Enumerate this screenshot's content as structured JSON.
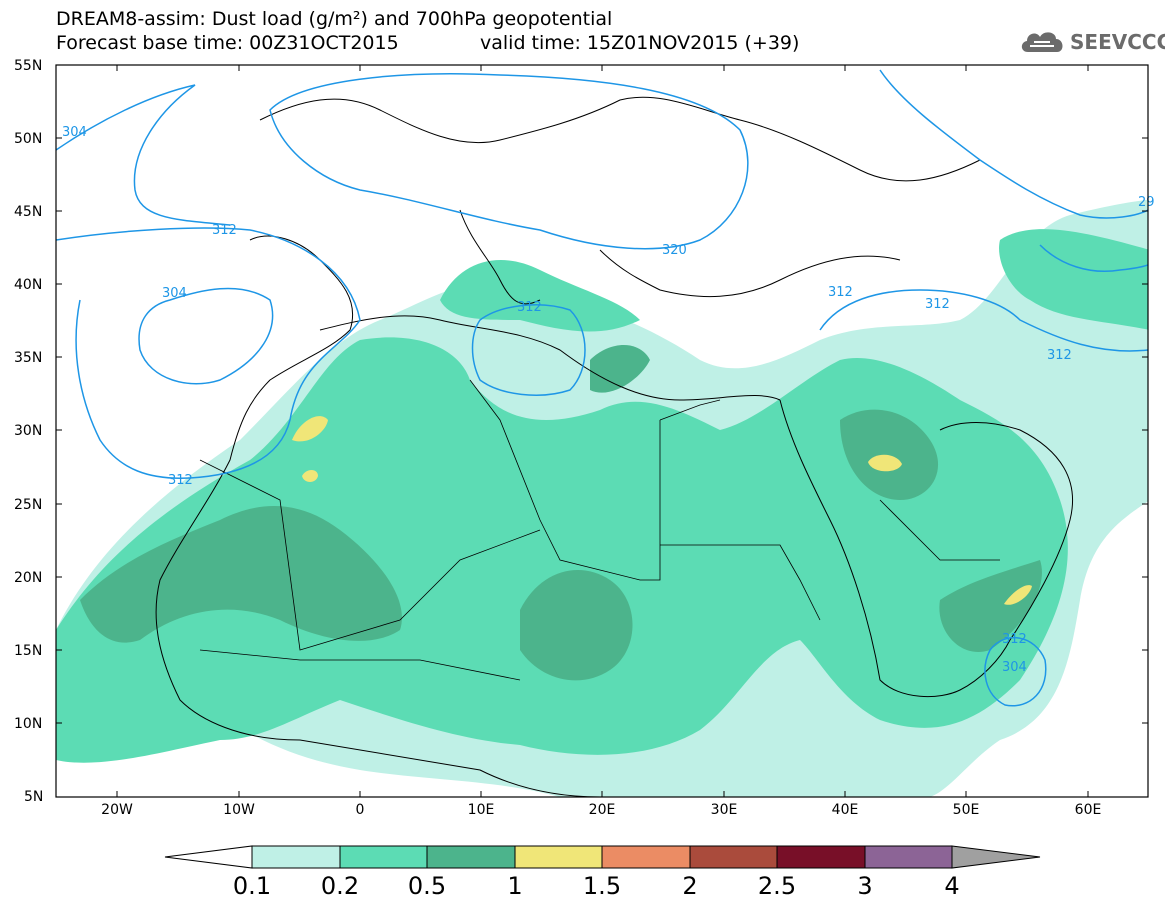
{
  "header": {
    "title_line1": "DREAM8-assim: Dust load (g/m²) and 700hPa geopotential",
    "title_line2": "Forecast base time: 00Z31OCT2015",
    "valid_time": "valid time: 15Z01NOV2015 (+39)",
    "logo_text": "SEEVCCC",
    "logo_icon": "cloud-icon"
  },
  "map": {
    "lat_labels": [
      "55N",
      "50N",
      "45N",
      "40N",
      "35N",
      "30N",
      "25N",
      "20N",
      "15N",
      "10N",
      "5N"
    ],
    "lon_labels": [
      "20W",
      "10W",
      "0",
      "10E",
      "20E",
      "30E",
      "40E",
      "50E",
      "60E"
    ],
    "contour_labels": [
      "304",
      "312",
      "304",
      "312",
      "320",
      "312",
      "312",
      "312",
      "312",
      "312",
      "304",
      "29"
    ],
    "colors": {
      "contour": "#1e96e6",
      "coast": "#000000"
    }
  },
  "colorbar": {
    "labels": [
      "0.1",
      "0.2",
      "0.5",
      "1",
      "1.5",
      "2",
      "2.5",
      "3",
      "4"
    ],
    "colors": [
      "#ffffff",
      "#bff0e6",
      "#5cdcb4",
      "#4cb48c",
      "#f0e678",
      "#eb8c64",
      "#aa4b3c",
      "#780f28",
      "#8c6496",
      "#a0a0a0"
    ]
  }
}
